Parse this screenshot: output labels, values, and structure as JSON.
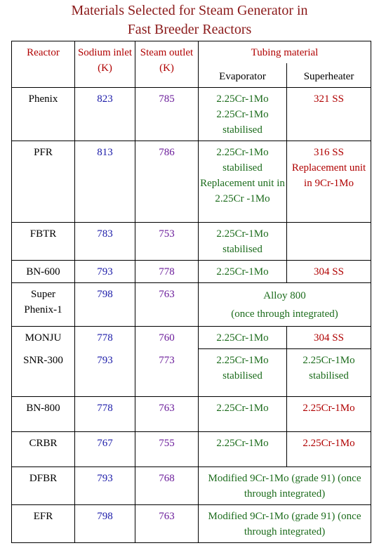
{
  "title": {
    "line1": "Materials Selected for Steam Generator in",
    "line2": "Fast Breeder Reactors"
  },
  "headers": {
    "reactor": "Reactor",
    "sodium_inlet": "Sodium inlet (K)",
    "steam_outlet": "Steam outlet (K)",
    "tubing_material": "Tubing material",
    "evaporator": "Evaporator",
    "superheater": "Superheater"
  },
  "rows": [
    {
      "reactor": "Phenix",
      "sodium": "823",
      "steam": "785",
      "evaporator": "2.25Cr-1Mo 2.25Cr-1Mo stabilised",
      "superheater": "321 SS"
    },
    {
      "reactor": "PFR",
      "sodium": "813",
      "steam": "786",
      "evaporator": "2.25Cr-1Mo stabilised Replacement unit in 2.25Cr -1Mo",
      "superheater": "316 SS Replacement unit in 9Cr-1Mo"
    },
    {
      "reactor": "FBTR",
      "sodium": "783",
      "steam": "753",
      "evaporator": "2.25Cr-1Mo stabilised",
      "superheater": ""
    },
    {
      "reactor": "BN-600",
      "sodium": "793",
      "steam": "778",
      "evaporator": "2.25Cr-1Mo",
      "superheater": "304 SS"
    },
    {
      "reactor": "Super Phenix-1",
      "sodium": "798",
      "steam": "763",
      "combined": "Alloy 800",
      "combined_note": "(once through integrated)"
    },
    {
      "reactor": "MONJU",
      "sodium": "778",
      "steam": "760",
      "evaporator": "2.25Cr-1Mo",
      "superheater": "304 SS"
    },
    {
      "reactor": "SNR-300",
      "sodium": "793",
      "steam": "773",
      "evaporator": "2.25Cr-1Mo stabilised",
      "superheater": "2.25Cr-1Mo stabilised"
    },
    {
      "reactor": "BN-800",
      "sodium": "778",
      "steam": "763",
      "evaporator": "2.25Cr-1Mo",
      "superheater": "2.25Cr-1Mo"
    },
    {
      "reactor": "CRBR",
      "sodium": "767",
      "steam": "755",
      "evaporator": "2.25Cr-1Mo",
      "superheater": "2.25Cr-1Mo"
    },
    {
      "reactor": "DFBR",
      "sodium": "793",
      "steam": "768",
      "combined": "Modified 9Cr-1Mo (grade 91) (once through integrated)"
    },
    {
      "reactor": "EFR",
      "sodium": "798",
      "steam": "763",
      "combined": "Modified 9Cr-1Mo (grade 91) (once through integrated)"
    }
  ],
  "colors": {
    "title": "#8b1a1a",
    "header": "#b00000",
    "sodium_values": "#1a1aa8",
    "steam_values": "#6a1b9a",
    "evaporator_values": "#1b6b1b",
    "superheater_values": "#b00000",
    "grade91_values": "#1b6b1b"
  }
}
